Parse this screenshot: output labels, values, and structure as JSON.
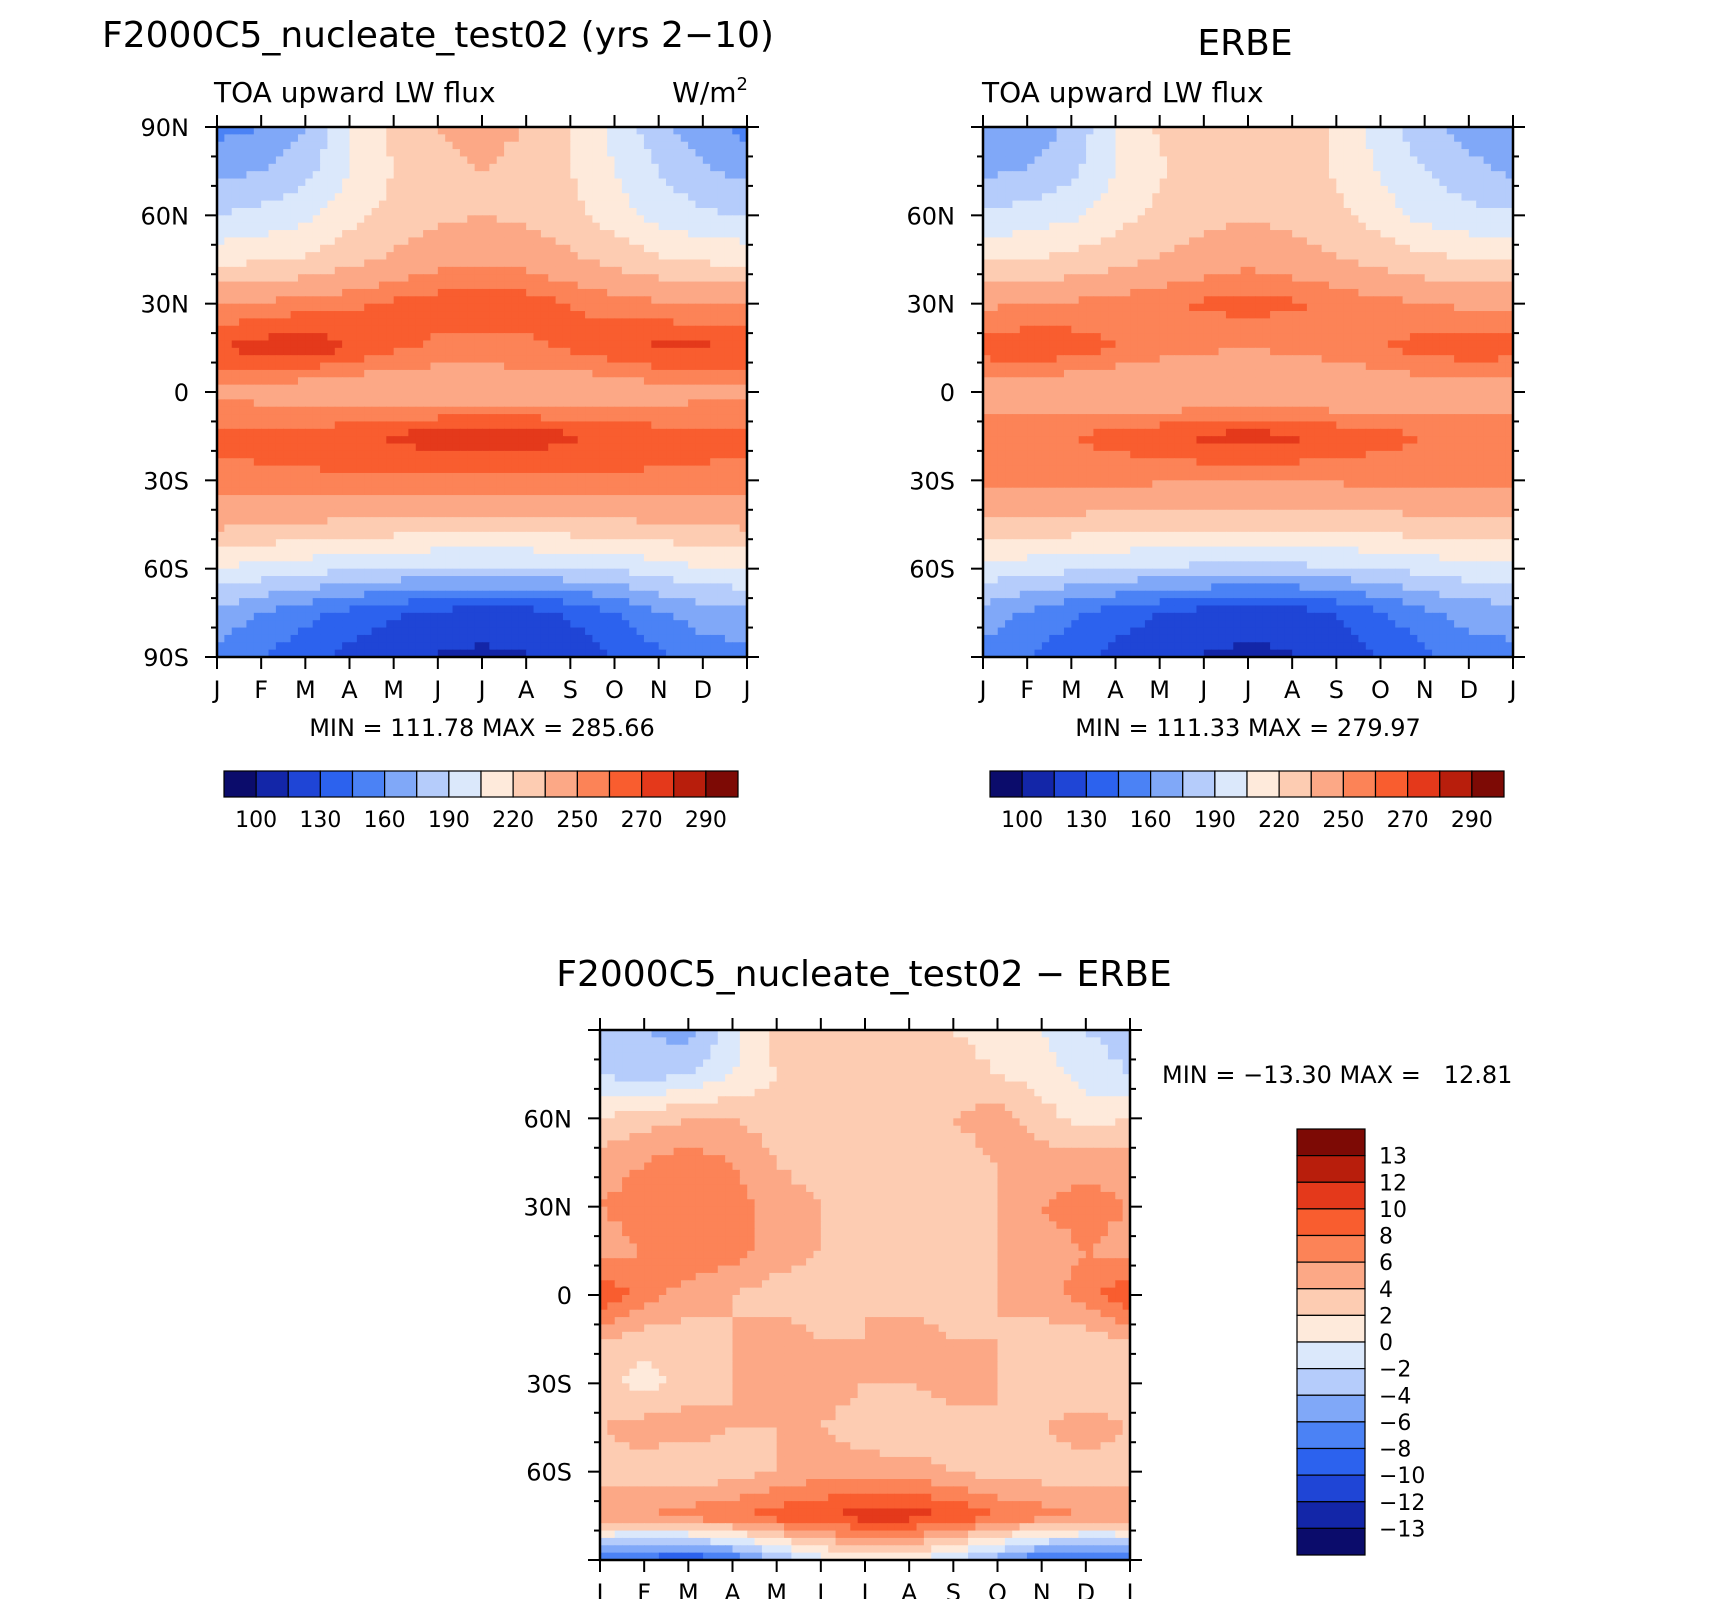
{
  "panels": [
    {
      "id": "model",
      "title": "F2000C5_nucleate_test02 (yrs 2−10)",
      "subtitle_left": "TOA upward LW flux",
      "subtitle_right": "W/m",
      "subtitle_right_sup": "2",
      "stats": "MIN = 111.78 MAX = 285.66",
      "ylim": [
        -90,
        90
      ],
      "yticks": [
        {
          "value": 90,
          "label": "90N"
        },
        {
          "value": 60,
          "label": "60N"
        },
        {
          "value": 30,
          "label": "30N"
        },
        {
          "value": 0,
          "label": "0"
        },
        {
          "value": -30,
          "label": "30S"
        },
        {
          "value": -60,
          "label": "60S"
        },
        {
          "value": -90,
          "label": "90S"
        }
      ]
    },
    {
      "id": "obs",
      "title": "ERBE",
      "subtitle_left": "TOA upward LW flux",
      "subtitle_right": "",
      "subtitle_right_sup": "",
      "stats": "MIN = 111.33 MAX = 279.97",
      "ylim": [
        -90,
        90
      ],
      "yticks": [
        {
          "value": 60,
          "label": "60N"
        },
        {
          "value": 30,
          "label": "30N"
        },
        {
          "value": 0,
          "label": "0"
        },
        {
          "value": -30,
          "label": "30S"
        },
        {
          "value": -60,
          "label": "60S"
        }
      ]
    },
    {
      "id": "diff",
      "title": "F2000C5_nucleate_test02 − ERBE",
      "subtitle_left": "",
      "subtitle_right": "",
      "subtitle_right_sup": "",
      "stats": "MIN = −13.30 MAX =   12.81",
      "ylim": [
        -90,
        90
      ],
      "yticks": [
        {
          "value": 60,
          "label": "60N"
        },
        {
          "value": 30,
          "label": "30N"
        },
        {
          "value": 0,
          "label": "0"
        },
        {
          "value": -30,
          "label": "30S"
        },
        {
          "value": -60,
          "label": "60S"
        }
      ]
    }
  ],
  "xtick_labels": [
    "J",
    "F",
    "M",
    "A",
    "M",
    "J",
    "J",
    "A",
    "S",
    "O",
    "N",
    "D",
    "J"
  ],
  "palette": [
    "#0b0c6b",
    "#1326a8",
    "#1f45d6",
    "#2c62ee",
    "#4b82f5",
    "#80a8f8",
    "#b5ccfb",
    "#dbe8fb",
    "#feeadb",
    "#fdccb2",
    "#fca886",
    "#fc8357",
    "#f95d2f",
    "#e4391b",
    "#b81e0c",
    "#7d0a05"
  ],
  "colorbar_abs": {
    "label_values": [
      "100",
      "130",
      "160",
      "190",
      "220",
      "250",
      "270",
      "290"
    ]
  },
  "colorbar_diff": {
    "labels": [
      "13",
      "12",
      "10",
      "8",
      "6",
      "4",
      "2",
      "0",
      "−2",
      "−4",
      "−6",
      "−8",
      "−10",
      "−12",
      "−13"
    ]
  },
  "chart_data": [
    {
      "type": "heatmap",
      "title": "F2000C5_nucleate_test02 (yrs 2−10)",
      "ylabel": "",
      "units": "W/m2",
      "x": [
        "J",
        "F",
        "M",
        "A",
        "M",
        "J",
        "J",
        "A",
        "S",
        "O",
        "N",
        "D",
        "J"
      ],
      "y": [
        90,
        75,
        60,
        45,
        30,
        15,
        0,
        -15,
        -30,
        -45,
        -60,
        -75,
        -90
      ],
      "z": [
        [
          155,
          160,
          175,
          205,
          225,
          235,
          240,
          235,
          220,
          200,
          180,
          165,
          155
        ],
        [
          170,
          175,
          185,
          205,
          220,
          230,
          235,
          230,
          220,
          205,
          190,
          178,
          170
        ],
        [
          190,
          195,
          200,
          215,
          225,
          232,
          235,
          232,
          225,
          212,
          200,
          192,
          190
        ],
        [
          215,
          218,
          222,
          230,
          238,
          245,
          248,
          245,
          238,
          230,
          222,
          218,
          215
        ],
        [
          250,
          252,
          255,
          258,
          262,
          265,
          268,
          265,
          260,
          256,
          252,
          250,
          250
        ],
        [
          270,
          275,
          278,
          270,
          262,
          258,
          256,
          258,
          262,
          268,
          272,
          272,
          270
        ],
        [
          248,
          245,
          240,
          238,
          236,
          238,
          240,
          240,
          238,
          240,
          244,
          246,
          248
        ],
        [
          262,
          263,
          265,
          268,
          272,
          276,
          278,
          276,
          272,
          268,
          265,
          263,
          262
        ],
        [
          258,
          258,
          258,
          258,
          258,
          258,
          258,
          258,
          258,
          258,
          258,
          258,
          258
        ],
        [
          238,
          236,
          234,
          232,
          230,
          228,
          228,
          228,
          230,
          232,
          234,
          236,
          238
        ],
        [
          205,
          200,
          196,
          192,
          190,
          188,
          188,
          188,
          190,
          192,
          198,
          204,
          205
        ],
        [
          170,
          160,
          150,
          140,
          132,
          126,
          122,
          124,
          132,
          145,
          158,
          168,
          170
        ],
        [
          155,
          145,
          135,
          125,
          118,
          114,
          112,
          114,
          120,
          130,
          142,
          152,
          155
        ]
      ]
    },
    {
      "type": "heatmap",
      "title": "ERBE",
      "ylabel": "",
      "units": "W/m2",
      "x": [
        "J",
        "F",
        "M",
        "A",
        "M",
        "J",
        "J",
        "A",
        "S",
        "O",
        "N",
        "D",
        "J"
      ],
      "y": [
        90,
        75,
        60,
        45,
        30,
        15,
        0,
        -15,
        -30,
        -45,
        -60,
        -75,
        -90
      ],
      "z": [
        [
          160,
          165,
          178,
          205,
          222,
          230,
          235,
          230,
          218,
          198,
          180,
          168,
          160
        ],
        [
          172,
          176,
          186,
          205,
          218,
          228,
          232,
          228,
          218,
          204,
          190,
          180,
          172
        ],
        [
          192,
          196,
          202,
          214,
          224,
          230,
          234,
          230,
          224,
          212,
          200,
          194,
          192
        ],
        [
          218,
          220,
          224,
          230,
          236,
          242,
          246,
          242,
          236,
          230,
          224,
          220,
          218
        ],
        [
          248,
          250,
          252,
          255,
          258,
          262,
          264,
          262,
          258,
          254,
          250,
          248,
          248
        ],
        [
          265,
          268,
          266,
          260,
          255,
          252,
          250,
          252,
          256,
          260,
          264,
          266,
          265
        ],
        [
          244,
          242,
          238,
          236,
          235,
          236,
          238,
          238,
          236,
          238,
          242,
          244,
          244
        ],
        [
          256,
          258,
          260,
          264,
          268,
          272,
          274,
          272,
          268,
          264,
          260,
          258,
          256
        ],
        [
          255,
          254,
          254,
          253,
          252,
          252,
          252,
          252,
          252,
          253,
          254,
          255,
          255
        ],
        [
          232,
          231,
          229,
          228,
          226,
          225,
          224,
          225,
          226,
          228,
          230,
          232,
          232
        ],
        [
          200,
          196,
          193,
          190,
          188,
          186,
          186,
          186,
          188,
          190,
          195,
          199,
          200
        ],
        [
          168,
          158,
          148,
          138,
          130,
          124,
          120,
          122,
          130,
          143,
          156,
          166,
          168
        ],
        [
          155,
          145,
          135,
          125,
          118,
          114,
          112,
          114,
          120,
          130,
          142,
          152,
          155
        ]
      ]
    },
    {
      "type": "heatmap",
      "title": "F2000C5_nucleate_test02 − ERBE",
      "ylabel": "",
      "units": "W/m2",
      "x": [
        "J",
        "F",
        "M",
        "A",
        "M",
        "J",
        "J",
        "A",
        "S",
        "O",
        "N",
        "D",
        "J"
      ],
      "y": [
        90,
        75,
        60,
        45,
        30,
        15,
        0,
        -15,
        -30,
        -45,
        -60,
        -75,
        -90
      ],
      "z": [
        [
          -3,
          -4,
          -5,
          -1,
          3,
          4,
          3,
          4,
          2,
          1,
          0,
          -2,
          -3
        ],
        [
          -2,
          -3,
          -2,
          0,
          2,
          3,
          2,
          3,
          3,
          2,
          1,
          -1,
          -2
        ],
        [
          2,
          3,
          4,
          4,
          3,
          2,
          3,
          3,
          4,
          5,
          3,
          1,
          2
        ],
        [
          5,
          6,
          7,
          6,
          4,
          3,
          4,
          4,
          3,
          4,
          5,
          5,
          5
        ],
        [
          6,
          7,
          8,
          7,
          5,
          4,
          4,
          3,
          3,
          4,
          6,
          7,
          6
        ],
        [
          5,
          6,
          8,
          7,
          5,
          4,
          3,
          3,
          3,
          4,
          5,
          6,
          5
        ],
        [
          10,
          7,
          5,
          4,
          3,
          3,
          4,
          3,
          3,
          4,
          5,
          7,
          10
        ],
        [
          4,
          3,
          3,
          4,
          5,
          4,
          4,
          5,
          4,
          4,
          3,
          3,
          4
        ],
        [
          3,
          1,
          3,
          4,
          6,
          5,
          4,
          4,
          5,
          4,
          3,
          2,
          3
        ],
        [
          4,
          5,
          5,
          4,
          4,
          4,
          3,
          2,
          3,
          4,
          4,
          5,
          4
        ],
        [
          3,
          3,
          2,
          3,
          4,
          5,
          5,
          5,
          4,
          3,
          3,
          3,
          3
        ],
        [
          6,
          6,
          7,
          8,
          9,
          10,
          11,
          11,
          10,
          8,
          7,
          6,
          6
        ],
        [
          -8,
          -9,
          -10,
          -8,
          -4,
          -1,
          1,
          0,
          -2,
          -5,
          -8,
          -9,
          -8
        ]
      ]
    }
  ]
}
